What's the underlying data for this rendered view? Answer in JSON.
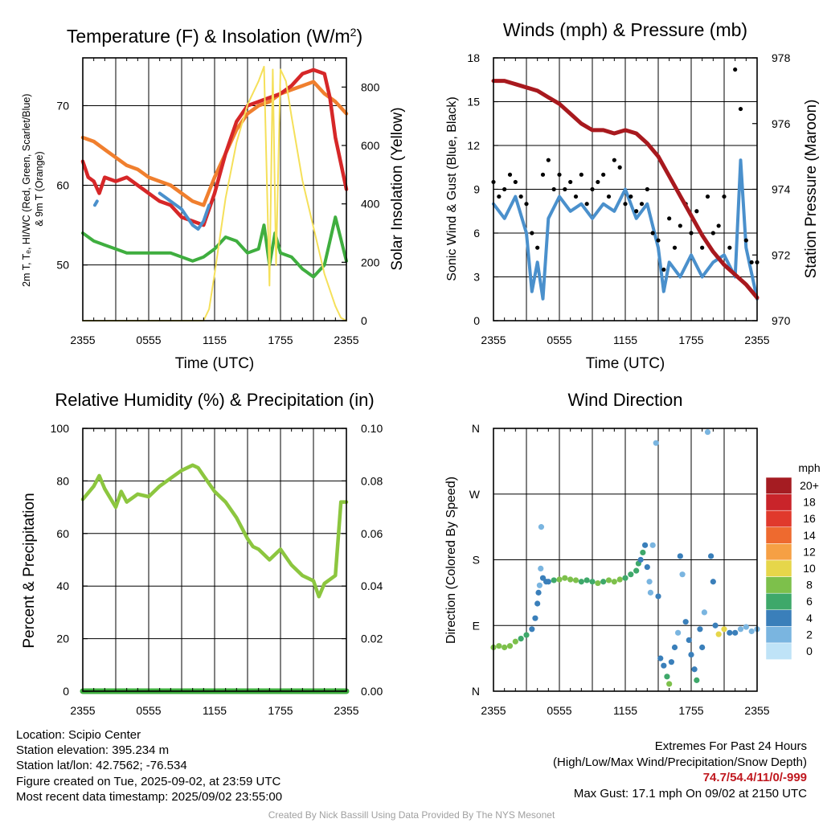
{
  "panels": {
    "temp": {
      "title": "Temperature (F) & Insolation (W/m²)",
      "left_label": "2m T, Tₑ, HI/WC (Red, Green, Scarlet/Blue) & 9m T (Orange)",
      "left_label_lines": [
        "2m T, Tₑ, HI/WC (Red, Green, Scarlet/Blue)",
        "& 9m T (Orange)"
      ],
      "right_label": "Solar Insolation (Yellow)",
      "xlabel": "Time (UTC)"
    },
    "wind": {
      "title": "Winds (mph) & Pressure (mb)",
      "left_label": "Sonic Wind & Gust (Blue, Black)",
      "right_label": "Station Pressure (Maroon)",
      "xlabel": "Time (UTC)"
    },
    "rh": {
      "title": "Relative Humidity (%) & Precipitation (in)",
      "left_label": "Percent & Precipitation"
    },
    "dir": {
      "title": "Wind Direction",
      "left_label": "Direction (Colored By Speed)",
      "legend_title": "mph",
      "legend_labels": [
        "20+",
        "18",
        "16",
        "14",
        "12",
        "10",
        "8",
        "6",
        "4",
        "2",
        "0"
      ],
      "legend_colors": [
        "#a51c22",
        "#c9242a",
        "#e0392c",
        "#ee6a2f",
        "#f6a044",
        "#e6d64a",
        "#7dc04b",
        "#3ea86a",
        "#3a7fba",
        "#7ab5e0",
        "#bfe3f7"
      ]
    }
  },
  "footer": {
    "location": "Location: Scipio Center",
    "elevation": "Station elevation: 395.234 m",
    "latlon": "Station lat/lon: 42.7562; -76.534",
    "created": "Figure created on Tue, 2025-09-02, at 23:59 UTC",
    "recent": "Most recent data timestamp: 2025/09/02 23:55:00",
    "extremes_title": "Extremes For Past 24 Hours",
    "extremes_fields": "(High/Low/Max Wind/Precipitation/Snow Depth)",
    "extremes_values": "74.7/54.4/11/0/-999",
    "max_gust": "Max Gust: 17.1 mph On 09/02 at 2150 UTC",
    "credit": "Created By Nick Bassill Using Data Provided By The NYS Mesonet"
  },
  "colors": {
    "temp2m": "#d62728",
    "temp9m": "#f07f2e",
    "dewpoint": "#3fae3f",
    "windchill": "#4a90cc",
    "insolation": "#f5e05a",
    "wind": "#4a90cc",
    "gust": "#000000",
    "pressure": "#a8191e",
    "rh": "#8cc63f",
    "precip": "#3fae3f"
  },
  "chart_data": [
    {
      "id": "temp",
      "type": "line",
      "title": "Temperature (F) & Insolation (W/m²)",
      "xlabel": "Time (UTC)",
      "ylabel": "2m T, Tₑ, HI/WC (Red, Green, Scarlet/Blue) & 9m T (Orange)",
      "y2label": "Solar Insolation (Yellow)",
      "x_ticks": [
        "2355",
        "0555",
        "1155",
        "1755",
        "2355"
      ],
      "xlim": [
        0,
        24
      ],
      "ylim": [
        43,
        76
      ],
      "y_ticks": [
        50,
        60,
        70
      ],
      "y2lim": [
        0,
        900
      ],
      "y2_ticks": [
        0,
        200,
        400,
        600,
        800
      ],
      "grid": true,
      "series": [
        {
          "color": "#f07f2e",
          "axis": "left",
          "x": [
            0,
            1,
            2,
            3,
            4,
            5,
            6,
            7,
            8,
            9,
            10,
            11,
            12,
            13,
            14,
            15,
            16,
            17,
            18,
            19,
            20,
            21,
            22,
            23,
            24
          ],
          "y": [
            66,
            65.5,
            64.5,
            63.5,
            62.5,
            62,
            61,
            60.5,
            60,
            59,
            58,
            57.5,
            61,
            64,
            67,
            69,
            70,
            70.5,
            71.5,
            72,
            72.5,
            73,
            71.5,
            70.5,
            69
          ]
        },
        {
          "color": "#d62728",
          "axis": "left",
          "x": [
            0,
            0.5,
            1,
            1.5,
            2,
            3,
            4,
            5,
            6,
            7,
            8,
            9,
            10,
            11,
            12,
            13,
            14,
            15,
            16,
            17,
            18,
            19,
            20,
            21,
            22,
            22.5,
            23,
            24
          ],
          "y": [
            63,
            61,
            60.5,
            59,
            61,
            60.5,
            61,
            60,
            59,
            58,
            57.5,
            56,
            55.5,
            55,
            59,
            64,
            68,
            70,
            70.5,
            71,
            71.5,
            72.5,
            74,
            74.5,
            74,
            71,
            66,
            59.5
          ]
        },
        {
          "color": "#4a90cc",
          "axis": "left",
          "x": [
            7,
            7.5,
            8,
            9,
            9.5,
            10,
            10.5,
            11,
            11.5
          ],
          "y": [
            59,
            58.5,
            58,
            57,
            56,
            55,
            54.5,
            55.5,
            57.5
          ]
        },
        {
          "color": "#4a90cc",
          "axis": "left",
          "x": [
            1.1,
            1.3
          ],
          "y": [
            57.5,
            58
          ]
        },
        {
          "color": "#3fae3f",
          "axis": "left",
          "x": [
            0,
            1,
            2,
            3,
            4,
            5,
            6,
            7,
            8,
            9,
            10,
            11,
            12,
            13,
            14,
            15,
            16,
            16.5,
            17,
            17.5,
            18,
            19,
            20,
            21,
            22,
            23,
            24
          ],
          "y": [
            54,
            53,
            52.5,
            52,
            51.5,
            51.5,
            51.5,
            51.5,
            51.5,
            51,
            50.5,
            51,
            52,
            53.5,
            53,
            51.5,
            52,
            55,
            50,
            54,
            51.5,
            51,
            49.5,
            48.5,
            50,
            56,
            50.5
          ]
        },
        {
          "color": "#f5e05a",
          "axis": "right",
          "x": [
            0,
            11,
            11.5,
            12,
            13,
            14,
            15,
            16,
            16.5,
            17,
            17.3,
            17.6,
            18,
            18.5,
            19,
            20,
            21,
            22,
            23,
            23.5,
            24
          ],
          "y": [
            0,
            0,
            40,
            160,
            420,
            610,
            740,
            820,
            870,
            120,
            860,
            190,
            860,
            820,
            700,
            480,
            320,
            160,
            50,
            10,
            0
          ]
        }
      ]
    },
    {
      "id": "wind",
      "type": "line",
      "title": "Winds (mph) & Pressure (mb)",
      "xlabel": "Time (UTC)",
      "ylabel": "Sonic Wind & Gust (Blue, Black)",
      "y2label": "Station Pressure (Maroon)",
      "x_ticks": [
        "2355",
        "0555",
        "1155",
        "1755",
        "2355"
      ],
      "xlim": [
        0,
        24
      ],
      "ylim": [
        0,
        18
      ],
      "y_ticks": [
        0,
        3,
        6,
        9,
        12,
        15,
        18
      ],
      "y2lim": [
        970,
        978
      ],
      "y2_ticks": [
        970,
        972,
        974,
        976,
        978
      ],
      "grid": true,
      "series": [
        {
          "name_hint": "wind",
          "color": "#4a90cc",
          "axis": "left",
          "x": [
            0,
            1,
            2,
            3,
            3.5,
            4,
            4.5,
            5,
            6,
            7,
            8,
            9,
            10,
            11,
            12,
            13,
            14,
            15,
            15.5,
            16,
            17,
            18,
            19,
            20,
            21,
            22,
            22.5,
            23,
            24
          ],
          "y": [
            8,
            7,
            8.5,
            6,
            2,
            4,
            1.5,
            7,
            8.5,
            7.5,
            8,
            7,
            8,
            7.5,
            9,
            7,
            8,
            5,
            2,
            4,
            3,
            4.5,
            3,
            4,
            4.5,
            3,
            11,
            5,
            1.5
          ]
        },
        {
          "name_hint": "gust",
          "color": "#000000",
          "axis": "left",
          "mode": "markers",
          "x": [
            0,
            0.5,
            1,
            1.5,
            2,
            2.5,
            3,
            3.5,
            4,
            4.5,
            5,
            5.5,
            6,
            6.5,
            7,
            7.5,
            8,
            8.5,
            9,
            9.5,
            10,
            10.5,
            11,
            11.5,
            12,
            12.5,
            13,
            13.5,
            14,
            14.5,
            15,
            15.5,
            16,
            16.5,
            17,
            17.5,
            18,
            18.5,
            19,
            19.5,
            20,
            20.5,
            21,
            21.5,
            22,
            22.5,
            23,
            23.5,
            24
          ],
          "y": [
            9.5,
            8.5,
            9,
            10,
            9.5,
            8.5,
            8,
            6,
            5,
            10,
            11,
            9,
            10,
            9,
            9.5,
            8.5,
            10,
            8,
            9,
            9.5,
            10,
            8.5,
            11,
            10.5,
            8,
            8.5,
            7.5,
            8,
            9,
            6,
            5.5,
            3.5,
            7,
            5,
            6.5,
            8,
            6,
            7.5,
            5,
            8.5,
            6,
            6.5,
            8.5,
            5,
            17.2,
            14.5,
            5.5,
            4,
            4
          ]
        },
        {
          "name_hint": "pressure",
          "color": "#a8191e",
          "axis": "right",
          "x": [
            0,
            1,
            2,
            3,
            4,
            5,
            6,
            7,
            8,
            9,
            10,
            11,
            12,
            13,
            14,
            15,
            16,
            17,
            18,
            19,
            20,
            21,
            22,
            23,
            24
          ],
          "y": [
            977.3,
            977.3,
            977.2,
            977.1,
            977.0,
            976.8,
            976.6,
            976.3,
            976.0,
            975.8,
            975.8,
            975.7,
            975.8,
            975.7,
            975.4,
            975.0,
            974.4,
            973.8,
            973.2,
            972.6,
            972.1,
            971.7,
            971.4,
            971.1,
            970.7
          ]
        }
      ]
    },
    {
      "id": "rh",
      "type": "line",
      "title": "Relative Humidity (%) & Precipitation (in)",
      "ylabel": "Percent & Precipitation",
      "x_ticks": [
        "2355",
        "0555",
        "1155",
        "1755",
        "2355"
      ],
      "xlim": [
        0,
        24
      ],
      "ylim": [
        0,
        100
      ],
      "y_ticks": [
        0,
        20,
        40,
        60,
        80,
        100
      ],
      "y2lim": [
        0,
        0.1
      ],
      "y2_ticks": [
        "0.00",
        "0.02",
        "0.04",
        "0.06",
        "0.08",
        "0.10"
      ],
      "grid": true,
      "series": [
        {
          "color": "#8cc63f",
          "axis": "left",
          "x": [
            0,
            1,
            1.5,
            2,
            3,
            3.5,
            4,
            5,
            6,
            7,
            8,
            9,
            10,
            10.5,
            11,
            12,
            13,
            14,
            15,
            15.5,
            16,
            17,
            18,
            19,
            20,
            21,
            21.5,
            22,
            23,
            23.5,
            24
          ],
          "y": [
            73,
            78,
            82,
            77,
            70,
            76,
            72,
            75,
            74,
            78,
            81,
            84,
            86,
            85,
            82,
            76,
            72,
            66,
            58,
            55,
            54,
            50,
            54,
            48,
            44,
            42,
            36,
            41,
            44,
            72,
            72
          ]
        },
        {
          "color": "#3fae3f",
          "axis": "right",
          "x": [
            0,
            24
          ],
          "y": [
            0,
            0
          ]
        }
      ]
    },
    {
      "id": "dir",
      "type": "scatter",
      "title": "Wind Direction",
      "ylabel": "Direction (Colored By Speed)",
      "x_ticks": [
        "2355",
        "0555",
        "1155",
        "1755",
        "2355"
      ],
      "y_ticks": [
        "N",
        "E",
        "S",
        "W",
        "N"
      ],
      "xlim": [
        0,
        24
      ],
      "ylim": [
        0,
        360
      ],
      "grid": true,
      "colorbar": {
        "title": "mph",
        "labels": [
          "20+",
          "18",
          "16",
          "14",
          "12",
          "10",
          "8",
          "6",
          "4",
          "2",
          "0"
        ]
      },
      "points": [
        [
          0,
          60,
          8
        ],
        [
          0.5,
          62,
          8
        ],
        [
          1,
          60,
          7
        ],
        [
          1.5,
          62,
          7
        ],
        [
          2,
          68,
          7
        ],
        [
          2.5,
          72,
          6
        ],
        [
          3,
          77,
          6
        ],
        [
          3.5,
          85,
          4
        ],
        [
          3.8,
          100,
          3
        ],
        [
          4,
          120,
          3
        ],
        [
          4.1,
          135,
          3
        ],
        [
          4.2,
          145,
          2
        ],
        [
          4.3,
          168,
          2
        ],
        [
          4.35,
          225,
          1
        ],
        [
          4.5,
          155,
          3
        ],
        [
          4.8,
          150,
          3
        ],
        [
          5,
          150,
          4
        ],
        [
          5.5,
          152,
          6
        ],
        [
          6,
          153,
          7
        ],
        [
          6.5,
          155,
          8
        ],
        [
          7,
          153,
          7
        ],
        [
          7.5,
          152,
          7
        ],
        [
          8,
          150,
          6
        ],
        [
          8.5,
          152,
          6
        ],
        [
          9,
          150,
          6
        ],
        [
          9.5,
          148,
          7
        ],
        [
          10,
          150,
          6
        ],
        [
          10.5,
          152,
          7
        ],
        [
          11,
          150,
          7
        ],
        [
          11.5,
          153,
          7
        ],
        [
          12,
          155,
          6
        ],
        [
          12.5,
          160,
          6
        ],
        [
          13,
          165,
          6
        ],
        [
          13.2,
          175,
          5
        ],
        [
          13.4,
          180,
          4
        ],
        [
          13.6,
          190,
          5
        ],
        [
          13.8,
          200,
          4
        ],
        [
          14,
          170,
          3
        ],
        [
          14.2,
          150,
          2
        ],
        [
          14.3,
          135,
          2
        ],
        [
          14.5,
          200,
          2
        ],
        [
          14.8,
          340,
          2
        ],
        [
          15,
          130,
          3
        ],
        [
          15.2,
          45,
          4
        ],
        [
          15.5,
          35,
          4
        ],
        [
          15.8,
          20,
          5
        ],
        [
          16,
          10,
          7
        ],
        [
          16.2,
          40,
          4
        ],
        [
          16.5,
          60,
          3
        ],
        [
          16.8,
          80,
          2
        ],
        [
          17,
          185,
          4
        ],
        [
          17.2,
          160,
          2
        ],
        [
          17.5,
          95,
          3
        ],
        [
          17.8,
          70,
          3
        ],
        [
          18,
          50,
          4
        ],
        [
          18.3,
          30,
          4
        ],
        [
          18.5,
          15,
          5
        ],
        [
          18.8,
          85,
          4
        ],
        [
          19,
          60,
          3
        ],
        [
          19.2,
          108,
          2
        ],
        [
          19.5,
          355,
          2
        ],
        [
          19.8,
          185,
          4
        ],
        [
          20,
          150,
          3
        ],
        [
          20.2,
          90,
          4
        ],
        [
          20.5,
          78,
          10
        ],
        [
          21,
          85,
          9
        ],
        [
          21.5,
          80,
          4
        ],
        [
          22,
          80,
          4
        ],
        [
          22.5,
          85,
          2
        ],
        [
          23,
          88,
          2
        ],
        [
          23.5,
          82,
          1
        ],
        [
          24,
          85,
          1
        ]
      ]
    }
  ]
}
